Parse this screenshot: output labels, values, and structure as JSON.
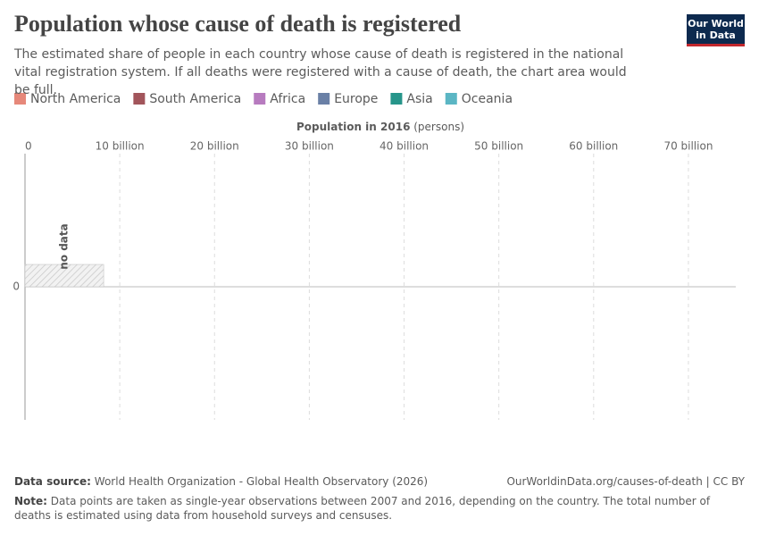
{
  "chart_data": {
    "type": "marimekko",
    "title": "Population whose cause of death is registered",
    "subtitle": "The estimated share of people in each country whose cause of death is registered in the national vital registration system. If all deaths were registered with a cause of death, the chart area would be full.",
    "logo": [
      "Our World",
      "in Data"
    ],
    "legend": [
      {
        "name": "North America",
        "color": "#e6887a"
      },
      {
        "name": "South America",
        "color": "#a2555b"
      },
      {
        "name": "Africa",
        "color": "#b77bbf"
      },
      {
        "name": "Europe",
        "color": "#6a80a6"
      },
      {
        "name": "Asia",
        "color": "#26958a"
      },
      {
        "name": "Oceania",
        "color": "#5bb6c4"
      }
    ],
    "x_label": "Population in 2016",
    "x_unit": "(persons)",
    "xlim": [
      0,
      75000000000
    ],
    "xticks": [
      0,
      {
        "value": 10000000000,
        "label": "10 billion"
      },
      {
        "value": 20000000000,
        "label": "20 billion"
      },
      {
        "value": 30000000000,
        "label": "30 billion"
      },
      {
        "value": 40000000000,
        "label": "40 billion"
      },
      {
        "value": 50000000000,
        "label": "50 billion"
      },
      {
        "value": 60000000000,
        "label": "60 billion"
      },
      {
        "value": 70000000000,
        "label": "70 billion"
      }
    ],
    "ylim": [
      -1,
      1
    ],
    "yticks": [
      0
    ],
    "grid": true,
    "no_data": {
      "label": "no data",
      "population": 8300000000
    },
    "source_label": "Data source:",
    "source": "World Health Organization - Global Health Observatory (2026)",
    "url": "OurWorldinData.org/causes-of-death | CC BY",
    "note_label": "Note:",
    "note": "Data points are taken as single-year observations between 2007 and 2016, depending on the country. The total number of deaths is estimated using data from household surveys and censuses."
  }
}
